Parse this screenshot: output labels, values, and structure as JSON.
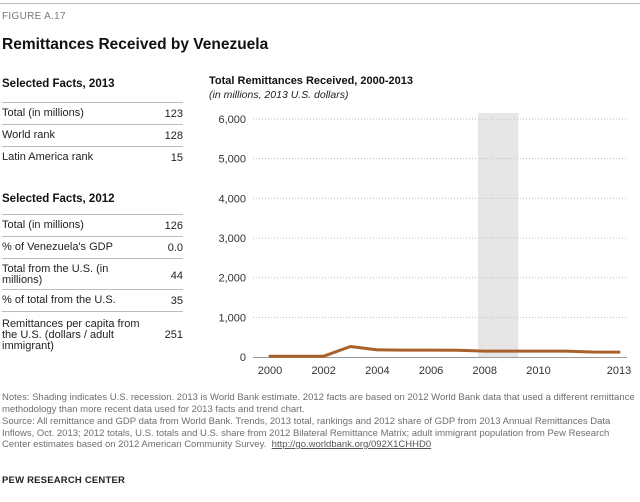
{
  "figure_label": "FIGURE A.17",
  "title": "Remittances Received by Venezuela",
  "facts_2013": {
    "heading": "Selected Facts, 2013",
    "rows": [
      {
        "label": "Total (in millions)",
        "value": "123"
      },
      {
        "label": "World rank",
        "value": "128"
      },
      {
        "label": "Latin America rank",
        "value": "15"
      }
    ]
  },
  "facts_2012": {
    "heading": "Selected Facts, 2012",
    "rows": [
      {
        "label": "Total (in millions)",
        "value": "126"
      },
      {
        "label": "% of Venezuela's GDP",
        "value": "0.0"
      },
      {
        "label": "Total from the U.S. (in millions)",
        "value": "44"
      },
      {
        "label": "% of total from the U.S.",
        "value": "35"
      },
      {
        "label": "Remittances per capita from the U.S. (dollars / adult immigrant)",
        "value": "251"
      }
    ]
  },
  "chart_data": {
    "type": "line",
    "title": "Total Remittances Received, 2000-2013",
    "subtitle": "(in millions, 2013 U.S. dollars)",
    "xlabel": "",
    "ylabel": "",
    "x": [
      2000,
      2001,
      2002,
      2003,
      2004,
      2005,
      2006,
      2007,
      2008,
      2009,
      2010,
      2011,
      2012,
      2013
    ],
    "series": [
      {
        "name": "Total remittances received",
        "values": [
          20,
          20,
          20,
          265,
          180,
          175,
          175,
          170,
          150,
          150,
          150,
          150,
          126,
          123
        ],
        "color": "#a8612a"
      }
    ],
    "xticks": [
      2000,
      2002,
      2004,
      2006,
      2008,
      2010,
      2013
    ],
    "xtick_labels": [
      "2000",
      "2002",
      "2004",
      "2006",
      "2008",
      "2010",
      "2013"
    ],
    "yticks": [
      0,
      1000,
      2000,
      3000,
      4000,
      5000,
      6000
    ],
    "ytick_labels": [
      "0",
      "1,000",
      "2,000",
      "3,000",
      "4,000",
      "5,000",
      "6,000"
    ],
    "ylim": [
      0,
      6000
    ],
    "xlim": [
      2000,
      2013
    ],
    "grid": true,
    "recession_shading": {
      "start": 2007.75,
      "end": 2009.25,
      "label": "U.S. recession",
      "color": "#e6e6e6"
    }
  },
  "notes": "Notes: Shading indicates U.S. recession. 2013 is World Bank estimate. 2012 facts are based on 2012 World Bank data that used a different remittance methodology than more recent data used for 2013 facts and trend chart.",
  "source_text": "Source: All remittance and GDP data from World Bank. Trends, 2013 total, rankings and 2012 share of GDP from 2013 Annual Remittances Data Inflows, Oct. 2013; 2012 totals, U.S. totals and U.S. share from 2012 Bilateral Remittance Matrix; adult immigrant population from Pew Research Center estimates based on 2012 American Community Survey.",
  "source_link": "http://go.worldbank.org/092X1CHHD0",
  "credit": "PEW RESEARCH CENTER"
}
